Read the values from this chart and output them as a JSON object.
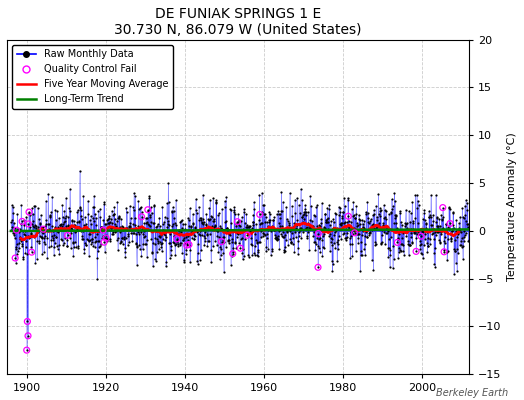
{
  "title": "DE FUNIAK SPRINGS 1 E",
  "subtitle": "30.730 N, 86.079 W (United States)",
  "ylabel": "Temperature Anomaly (°C)",
  "attribution": "Berkeley Earth",
  "xlim": [
    1895,
    2012
  ],
  "ylim": [
    -15,
    20
  ],
  "yticks": [
    -15,
    -10,
    -5,
    0,
    5,
    10,
    15,
    20
  ],
  "xticks": [
    1900,
    1920,
    1940,
    1960,
    1980,
    2000
  ],
  "seed": 42,
  "start_year": 1896,
  "end_year": 2011,
  "bg_color": "#ffffff",
  "plot_bg": "#ffffff",
  "raw_line_color": "blue",
  "raw_dot_color": "black",
  "qc_fail_color": "magenta",
  "moving_avg_color": "red",
  "trend_color": "green",
  "grid_color": "#cccccc"
}
